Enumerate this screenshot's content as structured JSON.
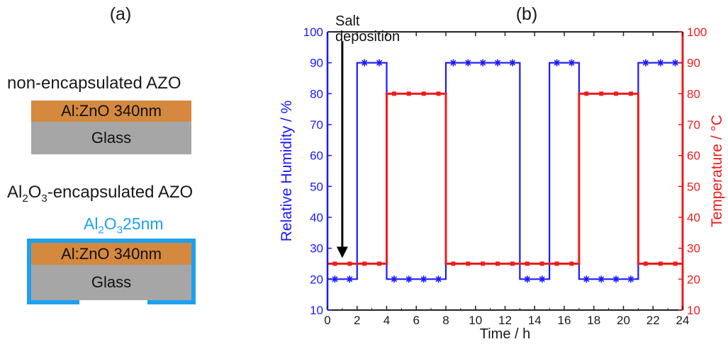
{
  "panel_a": {
    "label": "(a)",
    "stack1_title": "non-encapsulated AZO",
    "stack1_layers": [
      "Al:ZnO 340nm",
      "Glass"
    ],
    "stack2_title_parts": [
      "Al",
      "2",
      "O",
      "3",
      "-encapsulated AZO"
    ],
    "stack2_coating_parts": [
      "Al",
      "2",
      "O",
      "3",
      "25nm"
    ],
    "stack2_layers": [
      "Al:ZnO 340nm",
      "Glass"
    ],
    "colors": {
      "azo": "#d4893f",
      "glass": "#a6a6a6",
      "coating": "#1ea0ef"
    }
  },
  "panel_b": {
    "label": "(b)"
  },
  "chart_data": {
    "type": "line",
    "xlabel": "Time / h",
    "ylabel_left": "Relative Humidity / %",
    "ylabel_right": "Temperature / °C",
    "xlim": [
      0,
      24
    ],
    "ylim_left": [
      10,
      100
    ],
    "ylim_right": [
      10,
      100
    ],
    "x_ticks": [
      0,
      2,
      4,
      6,
      8,
      10,
      12,
      14,
      16,
      18,
      20,
      22,
      24
    ],
    "y_ticks": [
      10,
      20,
      30,
      40,
      50,
      60,
      70,
      80,
      90,
      100
    ],
    "annotation": {
      "text": [
        "Salt",
        "deposition"
      ],
      "x": 1,
      "y_from": 97,
      "y_to": 25
    },
    "series": [
      {
        "axis": "left",
        "color": "#1a1aff",
        "marker": "asterisk",
        "steps": [
          [
            0,
            20
          ],
          [
            2,
            90
          ],
          [
            4,
            20
          ],
          [
            8,
            90
          ],
          [
            13,
            20
          ],
          [
            15,
            90
          ],
          [
            17,
            20
          ],
          [
            21,
            90
          ],
          [
            24,
            90
          ]
        ],
        "markers_x": [
          0.5,
          1.5,
          2.5,
          3.5,
          4.5,
          5.5,
          6.5,
          7.5,
          8.5,
          9.5,
          10.5,
          11.5,
          12.5,
          13.5,
          14.5,
          15.5,
          16.5,
          17.5,
          18.5,
          19.5,
          20.5,
          21.5,
          22.5,
          23.5
        ]
      },
      {
        "axis": "right",
        "color": "#ee1c1c",
        "marker": "square",
        "steps": [
          [
            0,
            25
          ],
          [
            4,
            80
          ],
          [
            8,
            25
          ],
          [
            17,
            80
          ],
          [
            21,
            25
          ],
          [
            24,
            25
          ]
        ],
        "markers_x": [
          0.5,
          1.5,
          2.5,
          3.5,
          4.5,
          5.5,
          6.5,
          7.5,
          8.5,
          9.5,
          10.5,
          11.5,
          12.5,
          13.5,
          14.5,
          15.5,
          16.5,
          17.5,
          18.5,
          19.5,
          20.5,
          21.5,
          22.5,
          23.5
        ]
      }
    ]
  }
}
